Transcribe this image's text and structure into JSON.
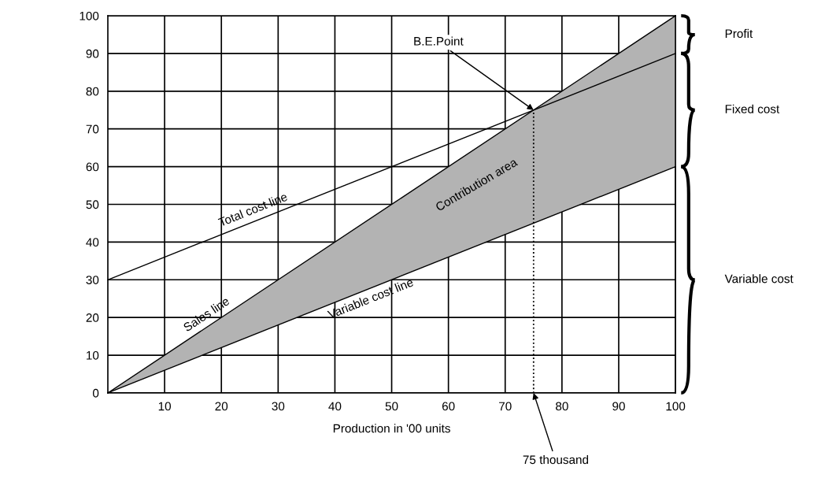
{
  "chart_data": {
    "type": "line",
    "xlabel": "Production in '00 units",
    "x": [
      0,
      100
    ],
    "series": [
      {
        "name": "Total cost line",
        "color": "#000000",
        "values": [
          30,
          90
        ]
      },
      {
        "name": "Sales line",
        "color": "#000000",
        "values": [
          0,
          100
        ],
        "lower": [
          0,
          60
        ],
        "upper": [
          0,
          100
        ]
      },
      {
        "name": "Variable cost line",
        "color": "#000000",
        "values": [
          0,
          60
        ]
      }
    ],
    "xlim": [
      0,
      100
    ],
    "ylim": [
      0,
      100
    ],
    "xticks": [
      10,
      20,
      30,
      40,
      50,
      60,
      70,
      80,
      90,
      100
    ],
    "yticks": [
      0,
      10,
      20,
      30,
      40,
      50,
      60,
      70,
      80,
      90,
      100
    ],
    "grid": true,
    "marker": "none",
    "line_style": "solid",
    "ref_lines": [
      {
        "axis": "x",
        "value": 75,
        "line_style": "dotted",
        "color": "#000000"
      }
    ],
    "annotations": [
      "Contribution area",
      {
        "text": "B.E.Point",
        "x": 75,
        "y": 75
      },
      {
        "text": "75 thousand",
        "x": 75,
        "y": 0
      },
      "Profit",
      "Fixed cost",
      "Variable cost"
    ]
  }
}
